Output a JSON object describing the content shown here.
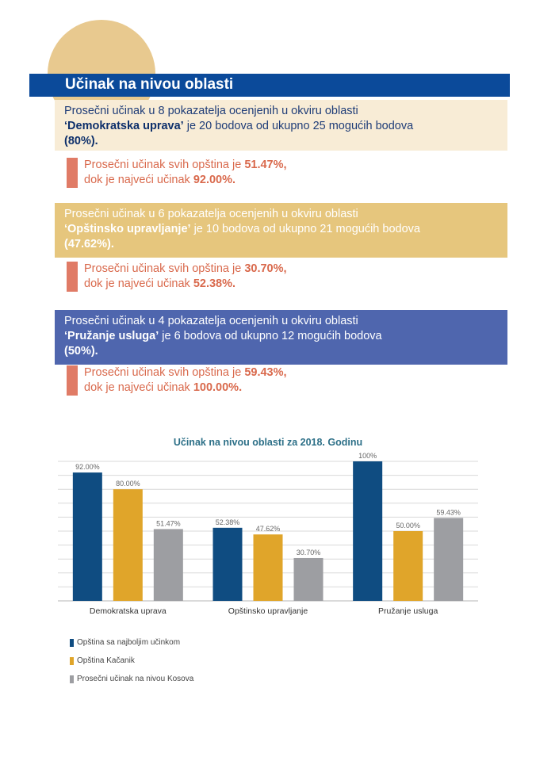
{
  "header": {
    "title": "Učinak na nivou oblasti"
  },
  "blocks": [
    {
      "line1": "Prosečni učinak u 8 pokazatelja ocenjenih u okviru oblasti",
      "area": "‘Demokratska uprava’",
      "line2_rest": " je 20 bodova od ukupno 25 mogućih bodova",
      "percent": "(80%).",
      "avg_prefix": "Prosečni učinak svih opština je ",
      "avg_value": "51.47%,",
      "max_prefix": "dok je najveći učinak ",
      "max_value": "92.00%."
    },
    {
      "line1": "Prosečni učinak u 6 pokazatelja ocenjenih u okviru oblasti",
      "area": "‘Opštinsko upravljanje’",
      "line2_rest": " je 10 bodova od ukupno 21 mogućih bodova",
      "percent": "(47.62%).",
      "avg_prefix": "Prosečni učinak svih opština je ",
      "avg_value": "30.70%,",
      "max_prefix": "dok je najveći učinak ",
      "max_value": "52.38%."
    },
    {
      "line1": "Prosečni učinak u 4 pokazatelja ocenjenih u okviru oblasti",
      "area": "‘Pružanje usluga’",
      "line2_rest": " je 6 bodova od ukupno 12 mogućih bodova",
      "percent": " (50%).",
      "avg_prefix": "Prosečni učinak svih opština je ",
      "avg_value": "59.43%,",
      "max_prefix": "dok je najveći učinak ",
      "max_value": "100.00%."
    }
  ],
  "colors": {
    "series_best": "#0f4c81",
    "series_kacanik": "#e0a52a",
    "series_avg": "#9d9ea2"
  },
  "chart_data": {
    "type": "bar",
    "title": "Učinak na nivou oblasti za 2018. Godinu",
    "categories": [
      "Demokratska uprava",
      "Opštinsko upravljanje",
      "Pružanje usluga"
    ],
    "series": [
      {
        "name": "Opština sa najboljim učinkom",
        "values": [
          92.0,
          52.38,
          100
        ],
        "labels": [
          "92.00%",
          "52.38%",
          "100%"
        ]
      },
      {
        "name": "Opština Kačanik",
        "values": [
          80.0,
          47.62,
          50.0
        ],
        "labels": [
          "80.00%",
          "47.62%",
          "50.00%"
        ]
      },
      {
        "name": "Prosečni učinak na nivou Kosova",
        "values": [
          51.47,
          30.7,
          59.43
        ],
        "labels": [
          "51.47%",
          "30.70%",
          "59.43%"
        ]
      }
    ],
    "ylim": [
      0,
      100
    ],
    "grid": true,
    "legend": "bottom-left"
  }
}
